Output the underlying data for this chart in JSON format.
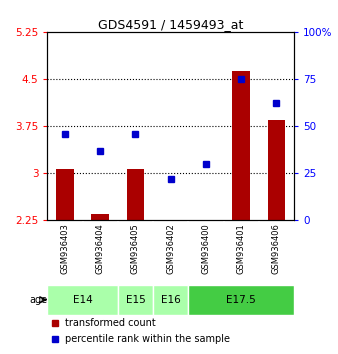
{
  "title": "GDS4591 / 1459493_at",
  "samples": [
    "GSM936403",
    "GSM936404",
    "GSM936405",
    "GSM936402",
    "GSM936400",
    "GSM936401",
    "GSM936406"
  ],
  "transformed_count": [
    3.07,
    2.35,
    3.07,
    2.21,
    2.21,
    4.63,
    3.85
  ],
  "percentile_rank": [
    46,
    37,
    46,
    22,
    30,
    75,
    62
  ],
  "ylim_left": [
    2.25,
    5.25
  ],
  "ylim_right": [
    0,
    100
  ],
  "yticks_left": [
    2.25,
    3.0,
    3.75,
    4.5,
    5.25
  ],
  "yticks_right": [
    0,
    25,
    50,
    75,
    100
  ],
  "ytick_labels_left": [
    "2.25",
    "3",
    "3.75",
    "4.5",
    "5.25"
  ],
  "ytick_labels_right": [
    "0",
    "25",
    "50",
    "75",
    "100%"
  ],
  "hlines": [
    3.0,
    3.75,
    4.5
  ],
  "bar_color": "#aa0000",
  "dot_color": "#0000cc",
  "bg_color": "#d8d8d8",
  "age_light_color": "#aaffaa",
  "age_dark_color": "#44cc44",
  "legend_red_label": "transformed count",
  "legend_blue_label": "percentile rank within the sample",
  "age_defs": [
    {
      "label": "E14",
      "indices": [
        0,
        1
      ],
      "dark": false
    },
    {
      "label": "E15",
      "indices": [
        2
      ],
      "dark": false
    },
    {
      "label": "E16",
      "indices": [
        3
      ],
      "dark": false
    },
    {
      "label": "E17.5",
      "indices": [
        4,
        5,
        6
      ],
      "dark": true
    }
  ]
}
